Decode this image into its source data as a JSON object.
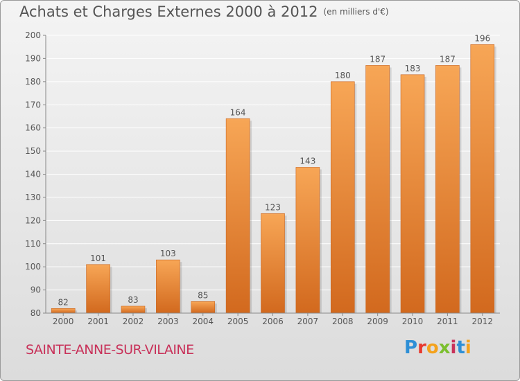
{
  "title": {
    "main": "Achats et Charges Externes 2000 à 2012",
    "unit": "(en milliers d'€)"
  },
  "location": "SAINTE-ANNE-SUR-VILAINE",
  "brand": {
    "text": "Proxiti",
    "letters": [
      {
        "char": "P",
        "color": "#2e8fd6"
      },
      {
        "char": "r",
        "color": "#e8392e"
      },
      {
        "char": "o",
        "color": "#f4a21c"
      },
      {
        "char": "x",
        "color": "#7bbf2e"
      },
      {
        "char": "i",
        "color": "#c8325a"
      },
      {
        "char": "t",
        "color": "#2e8fd6"
      },
      {
        "char": "i",
        "color": "#f4a21c"
      }
    ]
  },
  "chart_data": {
    "type": "bar",
    "categories": [
      "2000",
      "2001",
      "2002",
      "2003",
      "2004",
      "2005",
      "2006",
      "2007",
      "2008",
      "2009",
      "2010",
      "2011",
      "2012"
    ],
    "values": [
      82,
      101,
      83,
      103,
      85,
      164,
      123,
      143,
      180,
      187,
      183,
      187,
      196
    ],
    "data_labels": [
      "82",
      "101",
      "83",
      "103",
      "85",
      "164",
      "123",
      "143",
      "180",
      "187",
      "183",
      "187",
      "196"
    ],
    "ylim": [
      80,
      200
    ],
    "yticks": [
      80,
      90,
      100,
      110,
      120,
      130,
      140,
      150,
      160,
      170,
      180,
      190,
      200
    ],
    "xlabel": "",
    "ylabel": "",
    "grid": true,
    "colors": {
      "bar_light": "#f7a656",
      "bar_dark": "#d2691e",
      "grid": "#ffffff",
      "text": "#555555"
    }
  }
}
